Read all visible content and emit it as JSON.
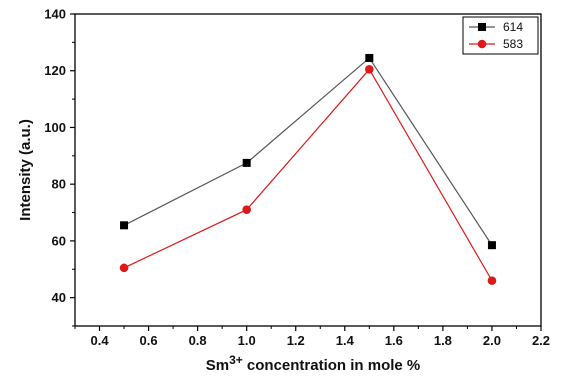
{
  "chart_data": {
    "type": "line",
    "xlabel_parts": {
      "prefix": "Sm",
      "superscript": "3+",
      "suffix": " concentration in mole %"
    },
    "ylabel": "Intensity (a.u.)",
    "xlim": [
      0.3,
      2.2
    ],
    "ylim": [
      30,
      140
    ],
    "xticks": [
      "0.4",
      "0.6",
      "0.8",
      "1.0",
      "1.2",
      "1.4",
      "1.6",
      "1.8",
      "2.0",
      "2.2"
    ],
    "xtick_values": [
      0.4,
      0.6,
      0.8,
      1.0,
      1.2,
      1.4,
      1.6,
      1.8,
      2.0,
      2.2
    ],
    "yticks": [
      "40",
      "60",
      "80",
      "100",
      "120",
      "140"
    ],
    "ytick_values": [
      40,
      60,
      80,
      100,
      120,
      140
    ],
    "grid": false,
    "legend_position": "top-right",
    "x": [
      0.5,
      1.0,
      1.5,
      2.0
    ],
    "series": [
      {
        "name": "614",
        "values": [
          65.5,
          87.5,
          124.5,
          58.5
        ],
        "color": "#000000",
        "line_color": "#555555",
        "marker": "square"
      },
      {
        "name": "583",
        "values": [
          50.5,
          71,
          120.5,
          46
        ],
        "color": "#dd1a1a",
        "line_color": "#dd1a1a",
        "marker": "circle"
      }
    ]
  }
}
